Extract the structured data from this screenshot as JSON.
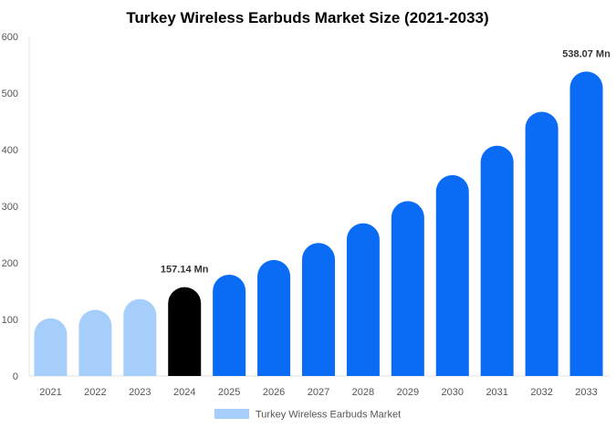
{
  "chart_data": {
    "type": "bar",
    "title": "Turkey Wireless Earbuds Market Size (2021-2033)",
    "xlabel": "",
    "ylabel": "",
    "ylim": [
      0,
      600
    ],
    "yticks": [
      0,
      100,
      200,
      300,
      400,
      500,
      600
    ],
    "categories": [
      "2021",
      "2022",
      "2023",
      "2024",
      "2025",
      "2026",
      "2027",
      "2028",
      "2029",
      "2030",
      "2031",
      "2032",
      "2033"
    ],
    "series": [
      {
        "name": "Turkey Wireless Earbuds Market",
        "values": [
          102,
          117,
          136,
          157.14,
          179,
          205,
          235,
          270,
          309,
          355,
          407,
          467,
          538.07
        ]
      }
    ],
    "bar_colors": [
      "#a6cefb",
      "#a6cefb",
      "#a6cefb",
      "#000000",
      "#0a6cf5",
      "#0a6cf5",
      "#0a6cf5",
      "#0a6cf5",
      "#0a6cf5",
      "#0a6cf5",
      "#0a6cf5",
      "#0a6cf5",
      "#0a6cf5"
    ],
    "data_labels": [
      {
        "index": 3,
        "text": "157.14 Mn"
      },
      {
        "index": 12,
        "text": "538.07 Mn"
      }
    ],
    "legend": {
      "position": "bottom",
      "label": "Turkey Wireless Earbuds Market",
      "color": "#a6cefb"
    },
    "grid": false
  }
}
